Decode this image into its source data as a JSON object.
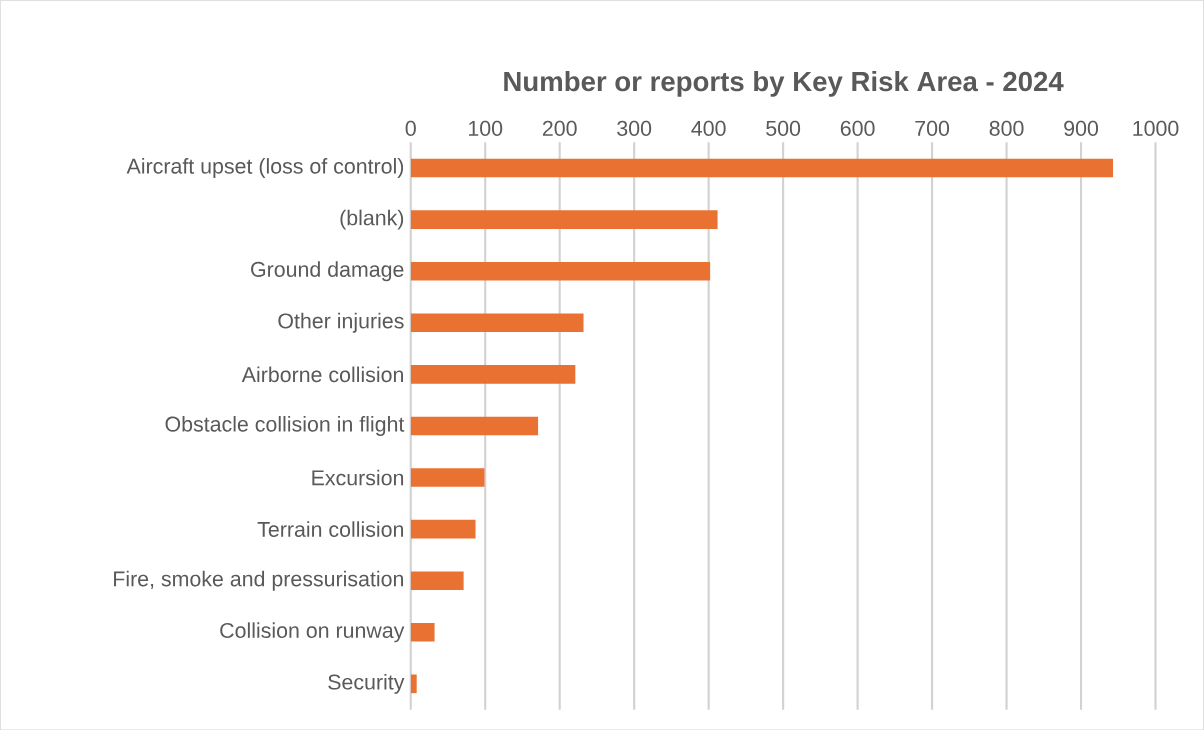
{
  "chart_data": {
    "type": "bar",
    "orientation": "horizontal",
    "title": "Number or reports by Key Risk Area - 2024",
    "categories": [
      "Aircraft upset (loss of control)",
      "(blank)",
      "Ground damage",
      "Other injuries",
      "Airborne collision",
      "Obstacle collision in flight",
      "Excursion",
      "Terrain collision",
      "Fire, smoke and pressurisation",
      "Collision on runway",
      "Security"
    ],
    "values": [
      943,
      412,
      402,
      232,
      221,
      171,
      99,
      87,
      71,
      32,
      8
    ],
    "color": "#e97132",
    "xlim": [
      0,
      1000
    ],
    "xticks": [
      0,
      100,
      200,
      300,
      400,
      500,
      600,
      700,
      800,
      900,
      1000
    ],
    "grid": "x"
  }
}
